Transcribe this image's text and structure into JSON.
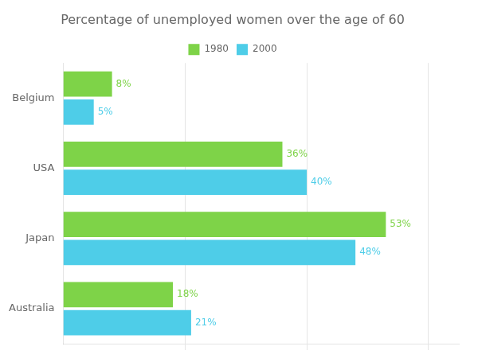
{
  "chart_data": {
    "type": "bar",
    "orientation": "horizontal",
    "title": "Percentage of unemployed women over the age of 60",
    "categories": [
      "Belgium",
      "USA",
      "Japan",
      "Australia"
    ],
    "series": [
      {
        "name": "1980",
        "color": "#7ed348",
        "values": [
          8,
          36,
          53,
          18
        ],
        "value_labels": [
          "8%",
          "36%",
          "53%",
          "18%"
        ]
      },
      {
        "name": "2000",
        "color": "#4ecde8",
        "values": [
          5,
          40,
          48,
          21
        ],
        "value_labels": [
          "5%",
          "40%",
          "48%",
          "21%"
        ]
      }
    ],
    "xlim": [
      0,
      65
    ],
    "xticks": [
      20,
      40,
      60
    ],
    "grid": true,
    "legend": "top",
    "data_labels": true,
    "tick_labels": "y"
  }
}
